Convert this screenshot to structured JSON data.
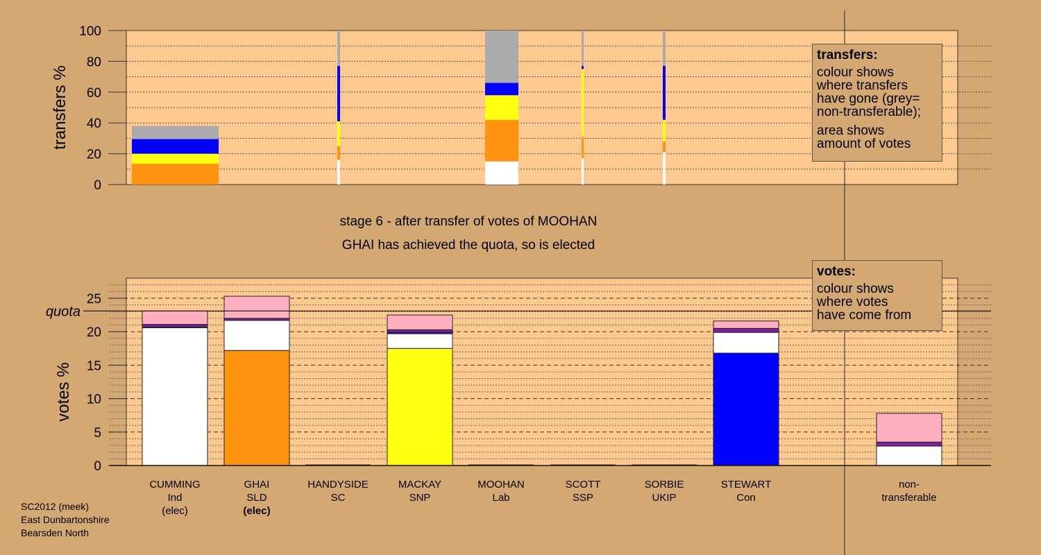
{
  "chart_data": [
    {
      "type": "bar",
      "title": "transfers",
      "ylabel": "transfers %",
      "ylim": [
        0,
        100
      ],
      "yticks": [
        0,
        20,
        40,
        60,
        80,
        100
      ],
      "bars": [
        {
          "candidate": "CUMMING",
          "segments": [
            {
              "color": "#ff9410",
              "value": 13.5
            },
            {
              "color": "#ffff10",
              "value": 6.5
            },
            {
              "color": "#0000ff",
              "value": 9.5
            },
            {
              "color": "#aaaaaa",
              "value": 8.5
            }
          ]
        },
        {
          "candidate": "HANDYSIDE",
          "segments": [
            {
              "color": "#ffffff",
              "value": 16
            },
            {
              "color": "#ff9410",
              "value": 9
            },
            {
              "color": "#ffff10",
              "value": 16
            },
            {
              "color": "#0000ff",
              "value": 36
            },
            {
              "color": "#aaaaaa",
              "value": 23
            }
          ]
        },
        {
          "candidate": "MOOHAN",
          "segments": [
            {
              "color": "#ffffff",
              "value": 15
            },
            {
              "color": "#ff9410",
              "value": 27
            },
            {
              "color": "#ffff10",
              "value": 16
            },
            {
              "color": "#0000ff",
              "value": 8
            },
            {
              "color": "#aaaaaa",
              "value": 34
            }
          ]
        },
        {
          "candidate": "SCOTT",
          "segments": [
            {
              "color": "#ffffff",
              "value": 17
            },
            {
              "color": "#ff9410",
              "value": 14
            },
            {
              "color": "#ffff10",
              "value": 44
            },
            {
              "color": "#0000ff",
              "value": 2
            },
            {
              "color": "#aaaaaa",
              "value": 23
            }
          ]
        },
        {
          "candidate": "SORBIE",
          "segments": [
            {
              "color": "#ffffff",
              "value": 21
            },
            {
              "color": "#ff9410",
              "value": 7
            },
            {
              "color": "#ffff10",
              "value": 14
            },
            {
              "color": "#0000ff",
              "value": 35
            },
            {
              "color": "#aaaaaa",
              "value": 23
            }
          ]
        }
      ]
    },
    {
      "type": "bar",
      "title": "votes",
      "ylabel": "votes %",
      "ylim": [
        0,
        28
      ],
      "yticks": [
        0,
        5,
        10,
        15,
        20,
        25
      ],
      "quota": 23.1,
      "quota_label": "quota",
      "categories": [
        "CUMMING",
        "GHAI",
        "HANDYSIDE",
        "MACKAY",
        "MOOHAN",
        "SCOTT",
        "SORBIE",
        "STEWART",
        "non-transferable"
      ],
      "bars": [
        {
          "candidate": "CUMMING",
          "segments": [
            {
              "color": "#ffffff",
              "value": 20.6
            },
            {
              "color": "#0000ff",
              "value": 0.1
            },
            {
              "color": "#7a1fa0",
              "value": 0.4
            },
            {
              "color": "#ffb0c0",
              "value": 2.0
            }
          ]
        },
        {
          "candidate": "GHAI",
          "segments": [
            {
              "color": "#ff9410",
              "value": 17.2
            },
            {
              "color": "#ffffff",
              "value": 4.5
            },
            {
              "color": "#7a1fa0",
              "value": 0.3
            },
            {
              "color": "#ffb0c0",
              "value": 3.3
            }
          ]
        },
        {
          "candidate": "HANDYSIDE",
          "segments": []
        },
        {
          "candidate": "MACKAY",
          "segments": [
            {
              "color": "#ffff10",
              "value": 17.5
            },
            {
              "color": "#ffffff",
              "value": 2.2
            },
            {
              "color": "#0000ff",
              "value": 0.2
            },
            {
              "color": "#7a1fa0",
              "value": 0.4
            },
            {
              "color": "#ffb0c0",
              "value": 2.2
            }
          ]
        },
        {
          "candidate": "MOOHAN",
          "segments": []
        },
        {
          "candidate": "SCOTT",
          "segments": []
        },
        {
          "candidate": "SORBIE",
          "segments": []
        },
        {
          "candidate": "STEWART",
          "segments": [
            {
              "color": "#0000ff",
              "value": 16.8
            },
            {
              "color": "#ffffff",
              "value": 3.1
            },
            {
              "color": "#7a1fa0",
              "value": 0.6
            },
            {
              "color": "#ffb0c0",
              "value": 1.1
            }
          ]
        },
        {
          "candidate": "non-transferable",
          "segments": [
            {
              "color": "#ffffff",
              "value": 2.9
            },
            {
              "color": "#7a1fa0",
              "value": 0.6
            },
            {
              "color": "#ffb0c0",
              "value": 4.3
            }
          ]
        }
      ]
    }
  ],
  "transfers_box": {
    "heading": "transfers:",
    "line1": "colour shows",
    "line2": "where transfers",
    "line3": "have gone (grey=",
    "line4": "non-transferable);",
    "line5": "area shows",
    "line6": "amount of votes"
  },
  "votes_box": {
    "heading": "votes:",
    "line1": "colour shows",
    "line2": "where votes",
    "line3": "have come from"
  },
  "stage_caption": "stage 6 - after transfer of votes of MOOHAN",
  "elected_caption": "GHAI has achieved the quota, so is elected",
  "candidates": [
    {
      "name": "CUMMING",
      "party": "Ind",
      "status": "(elec)",
      "bold": false
    },
    {
      "name": "GHAI",
      "party": "SLD",
      "status": "(elec)",
      "bold": true
    },
    {
      "name": "HANDYSIDE",
      "party": "SC",
      "status": "",
      "bold": false
    },
    {
      "name": "MACKAY",
      "party": "SNP",
      "status": "",
      "bold": false
    },
    {
      "name": "MOOHAN",
      "party": "Lab",
      "status": "",
      "bold": false
    },
    {
      "name": "SCOTT",
      "party": "SSP",
      "status": "",
      "bold": false
    },
    {
      "name": "SORBIE",
      "party": "UKIP",
      "status": "",
      "bold": false
    },
    {
      "name": "STEWART",
      "party": "Con",
      "status": "",
      "bold": false
    }
  ],
  "nontransferable_label": {
    "line1": "non-",
    "line2": "transferable"
  },
  "source": {
    "line1": "SC2012 (meek)",
    "line2": "East Dunbartonshire",
    "line3": "Bearsden North"
  }
}
